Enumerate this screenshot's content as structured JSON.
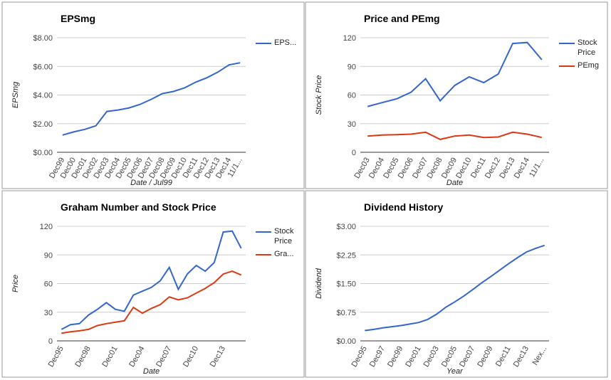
{
  "chart_data": [
    {
      "type": "line",
      "title": "EPSmg",
      "x_label": "Date / Jul99",
      "y_label": "EPSmg",
      "categories": [
        "Dec99",
        "Dec00",
        "Dec01",
        "Dec02",
        "Dec03",
        "Dec04",
        "Dec05",
        "Dec06",
        "Dec07",
        "Dec08",
        "Dec09",
        "Dec10",
        "Dec11",
        "Dec12",
        "Dec13",
        "Dec14",
        "11/1..."
      ],
      "series": [
        {
          "name": "EPS...",
          "color": "#3366cc",
          "values": [
            1.2,
            1.42,
            1.6,
            1.85,
            2.85,
            2.95,
            3.1,
            3.35,
            3.7,
            4.1,
            4.25,
            4.5,
            4.9,
            5.2,
            5.6,
            6.1,
            6.25
          ]
        }
      ],
      "ylim": [
        0,
        8
      ],
      "yticks": [
        {
          "value": 0,
          "label": "$0.00"
        },
        {
          "value": 2,
          "label": "$2.00"
        },
        {
          "value": 4,
          "label": "$4.00"
        },
        {
          "value": 6,
          "label": "$6.00"
        },
        {
          "value": 8,
          "label": "$8.00"
        }
      ]
    },
    {
      "type": "line",
      "title": "Price and PEmg",
      "x_label": "Date",
      "y_label": "Stock Price",
      "categories": [
        "Dec03",
        "Dec04",
        "Dec05",
        "Dec06",
        "Dec07",
        "Dec08",
        "Dec09",
        "Dec10",
        "Dec11",
        "Dec12",
        "Dec13",
        "Dec14",
        "11/1..."
      ],
      "series": [
        {
          "name": "Stock Price",
          "color": "#3366cc",
          "values": [
            48,
            52,
            56,
            63,
            77,
            54,
            70,
            79,
            73,
            82,
            114,
            115,
            97
          ]
        },
        {
          "name": "PEmg",
          "color": "#dc3912",
          "values": [
            17,
            18,
            18.5,
            19,
            21,
            13.5,
            17,
            18,
            15.5,
            16,
            21,
            19,
            15.5
          ]
        }
      ],
      "ylim": [
        0,
        120
      ],
      "yticks": [
        0,
        30,
        60,
        90,
        120
      ]
    },
    {
      "type": "line",
      "title": "Graham Number and Stock Price",
      "x_label": "Date",
      "y_label": "Price",
      "categories": [
        "Dec95",
        null,
        null,
        "Dec98",
        null,
        null,
        "Dec01",
        null,
        null,
        "Dec04",
        null,
        null,
        "Dec07",
        null,
        null,
        "Dec10",
        null,
        null,
        "Dec13",
        null,
        null
      ],
      "series": [
        {
          "name": "Stock Price",
          "color": "#3366cc",
          "values": [
            12,
            17,
            18,
            27,
            33,
            40,
            33,
            31,
            48,
            52,
            56,
            63,
            77,
            54,
            70,
            79,
            73,
            82,
            114,
            115,
            97
          ]
        },
        {
          "name": "Gra...",
          "color": "#dc3912",
          "values": [
            8,
            9.5,
            10.5,
            12,
            16,
            18,
            19.5,
            21,
            35,
            29,
            34,
            38,
            46,
            43,
            45,
            50,
            55,
            61,
            70,
            73,
            69
          ]
        }
      ],
      "ylim": [
        0,
        120
      ],
      "yticks": [
        0,
        30,
        60,
        90,
        120
      ]
    },
    {
      "type": "line",
      "title": "Dividend History",
      "x_label": "Year",
      "y_label": "Dividend",
      "categories": [
        "Dec95",
        null,
        "Dec97",
        null,
        "Dec99",
        null,
        "Dec01",
        null,
        "Dec03",
        null,
        "Dec05",
        null,
        "Dec07",
        null,
        "Dec09",
        null,
        "Dec11",
        null,
        "Dec13",
        null,
        "Nex..."
      ],
      "series": [
        {
          "color": "#3366cc",
          "values": [
            0.27,
            0.3,
            0.34,
            0.37,
            0.4,
            0.44,
            0.48,
            0.56,
            0.7,
            0.88,
            1.02,
            1.17,
            1.34,
            1.52,
            1.68,
            1.85,
            2.02,
            2.18,
            2.33,
            2.42,
            2.5
          ]
        }
      ],
      "ylim": [
        0,
        3
      ],
      "yticks": [
        {
          "value": 0,
          "label": "$0.00"
        },
        {
          "value": 0.75,
          "label": "$0.75"
        },
        {
          "value": 1.5,
          "label": "$1.50"
        },
        {
          "value": 2.25,
          "label": "$2.25"
        },
        {
          "value": 3,
          "label": "$3.00"
        }
      ]
    }
  ]
}
